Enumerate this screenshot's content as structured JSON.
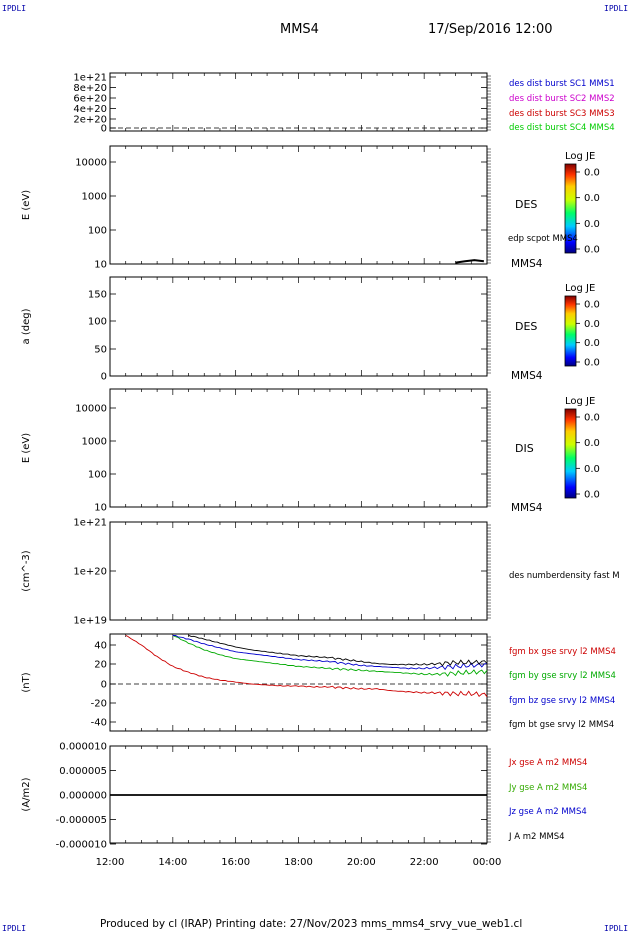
{
  "corner_label": "IPDLI",
  "header": {
    "spacecraft": "MMS4",
    "datetime": "17/Sep/2016 12:00"
  },
  "footer": "Produced by cl (IRAP)   Printing date: 27/Nov/2023   mms_mms4_srvy_vue_web1.cl",
  "time_axis": {
    "ticks": [
      "12:00",
      "14:00",
      "16:00",
      "18:00",
      "20:00",
      "22:00",
      "00:00"
    ],
    "range_hours": [
      0,
      12
    ]
  },
  "panels": [
    {
      "id": "p1",
      "ylabel": "",
      "yticks": [
        "1e+21",
        "8e+20",
        "6e+20",
        "4e+20",
        "2e+20",
        "0"
      ],
      "dashed_zero": true,
      "legend": [
        {
          "text": "des dist burst SC1 MMS1",
          "color": "#0000cc"
        },
        {
          "text": "des dist burst SC2 MMS2",
          "color": "#cc00cc"
        },
        {
          "text": "des dist burst SC3 MMS3",
          "color": "#cc0000"
        },
        {
          "text": "des dist burst SC4 MMS4",
          "color": "#00cc00"
        }
      ]
    },
    {
      "id": "p2",
      "ylabel": "E (eV)",
      "yticks": [
        "10000",
        "1000",
        "100",
        "10"
      ],
      "side_label": "DES",
      "bottom_label": "MMS4",
      "overlay_label": "edp scpot MMS4",
      "colorbar": {
        "title": "Log JE",
        "ticks": [
          "0.0",
          "0.0",
          "0.0",
          "0.0"
        ]
      }
    },
    {
      "id": "p3",
      "ylabel": "a (deg)",
      "yticks": [
        "150",
        "100",
        "50",
        "0"
      ],
      "side_label": "DES",
      "bottom_label": "MMS4",
      "colorbar": {
        "title": "Log JE",
        "ticks": [
          "0.0",
          "0.0",
          "0.0",
          "0.0"
        ]
      }
    },
    {
      "id": "p4",
      "ylabel": "E (eV)",
      "yticks": [
        "10000",
        "1000",
        "100",
        "10"
      ],
      "side_label": "DIS",
      "bottom_label": "MMS4",
      "colorbar": {
        "title": "Log JE",
        "ticks": [
          "0.0",
          "0.0",
          "0.0",
          "0.0"
        ]
      }
    },
    {
      "id": "p5",
      "ylabel": "(cm^-3)",
      "yticks": [
        "1e+21",
        "1e+20",
        "1e+19"
      ],
      "legend": [
        {
          "text": "des numberdensity fast M",
          "color": "#000000"
        }
      ]
    },
    {
      "id": "p6",
      "ylabel": "(nT)",
      "yticks": [
        "40",
        "20",
        "0",
        "-20",
        "-40"
      ],
      "dashed_zero": true,
      "legend": [
        {
          "text": "fgm bx gse srvy l2 MMS4",
          "color": "#cc0000"
        },
        {
          "text": "fgm by gse srvy l2 MMS4",
          "color": "#00aa00"
        },
        {
          "text": "fgm bz gse srvy l2 MMS4",
          "color": "#0000cc"
        },
        {
          "text": "fgm bt gse srvy l2 MMS4",
          "color": "#000000"
        }
      ]
    },
    {
      "id": "p7",
      "ylabel": "(A/m2)",
      "yticks": [
        "0.000010",
        "0.000005",
        "0.000000",
        "-0.000005",
        "-0.000010"
      ],
      "legend": [
        {
          "text": "Jx gse A m2 MMS4",
          "color": "#cc0000"
        },
        {
          "text": "Jy gse A m2 MMS4",
          "color": "#33aa00"
        },
        {
          "text": "Jz gse A m2 MMS4",
          "color": "#0000cc"
        },
        {
          "text": "J A m2 MMS4",
          "color": "#000000"
        }
      ]
    }
  ],
  "chart_data": {
    "type": "line",
    "title": "MMS4  17/Sep/2016 12:00",
    "x_unit": "hours after 17/Sep/2016 12:00",
    "magnetic_field_nT": {
      "ylim": [
        -50,
        50
      ],
      "x": [
        0.5,
        1,
        1.5,
        2,
        2.5,
        3,
        3.5,
        4,
        4.5,
        5,
        5.5,
        6,
        6.5,
        7,
        7.5,
        8,
        8.5,
        9,
        9.5,
        10,
        10.5,
        11,
        11.5,
        12
      ],
      "series": [
        {
          "name": "fgm bx gse srvy l2 MMS4",
          "color": "#cc0000",
          "values": [
            50,
            40,
            28,
            18,
            12,
            7,
            4,
            2,
            0,
            -1,
            -2,
            -2,
            -3,
            -3,
            -4,
            -5,
            -5,
            -7,
            -8,
            -9,
            -9,
            -10,
            -10,
            -11
          ]
        },
        {
          "name": "fgm by gse srvy l2 MMS4",
          "color": "#00aa00",
          "values": [
            null,
            null,
            null,
            50,
            42,
            35,
            30,
            26,
            24,
            22,
            20,
            18,
            17,
            16,
            15,
            14,
            13,
            12,
            11,
            10,
            10,
            11,
            12,
            13
          ]
        },
        {
          "name": "fgm bz gse srvy l2 MMS4",
          "color": "#0000cc",
          "values": [
            null,
            null,
            null,
            50,
            46,
            41,
            37,
            33,
            31,
            29,
            27,
            25,
            24,
            23,
            21,
            19,
            18,
            17,
            16,
            16,
            17,
            18,
            19,
            20
          ]
        },
        {
          "name": "fgm bt gse srvy l2 MMS4",
          "color": "#000000",
          "values": [
            null,
            null,
            null,
            null,
            50,
            46,
            42,
            38,
            35,
            33,
            31,
            29,
            28,
            27,
            25,
            23,
            21,
            20,
            20,
            20,
            21,
            22,
            22,
            23
          ]
        }
      ]
    },
    "current_density_Am2": {
      "ylim": [
        -1e-05,
        1e-05
      ],
      "series": [
        {
          "name": "J A m2 MMS4",
          "color": "#000000",
          "x": [
            0,
            12
          ],
          "values": [
            0,
            0
          ]
        }
      ]
    },
    "edp_scpot": {
      "name": "edp scpot MMS4",
      "x": [
        11.0,
        11.3,
        11.6,
        11.9
      ],
      "values": [
        11,
        12,
        13,
        12
      ]
    }
  }
}
